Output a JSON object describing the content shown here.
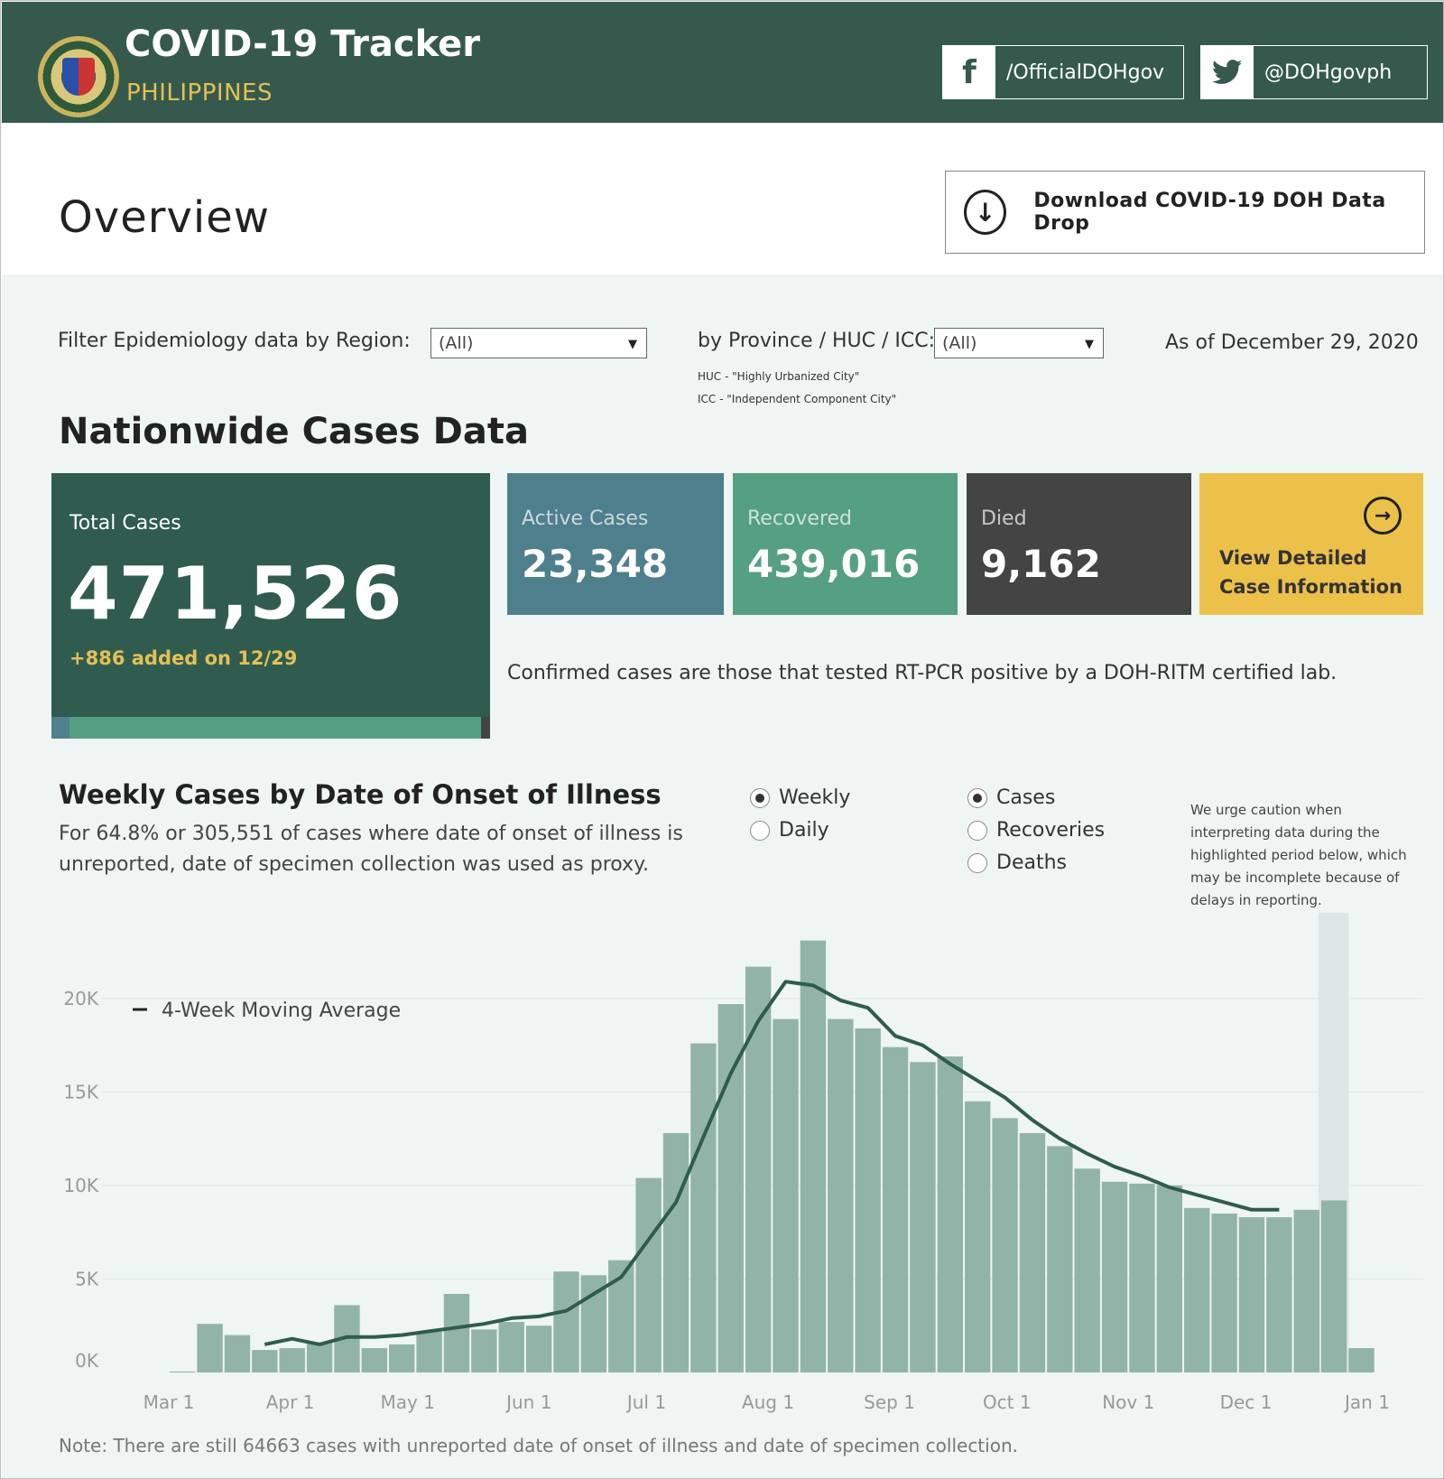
{
  "header": {
    "title": "COVID-19 Tracker",
    "subtitle": "PHILIPPINES",
    "facebook": "/OfficialDOHgov",
    "twitter": "@DOHgovph"
  },
  "overview": {
    "title": "Overview",
    "download_label": "Download COVID-19 DOH Data Drop"
  },
  "filters": {
    "region_label": "Filter Epidemiology data by Region:",
    "region_value": "(All)",
    "province_label": "by Province / HUC / ICC:",
    "province_value": "(All)",
    "huc_note": "HUC - \"Highly Urbanized City\"",
    "icc_note": "ICC - \"Independent Component City\"",
    "as_of": "As of December 29, 2020"
  },
  "nationwide": {
    "heading": "Nationwide Cases Data",
    "total_label": "Total Cases",
    "total_value": "471,526",
    "added": "+886 added on 12/29",
    "active_label": "Active Cases",
    "active_value": "23,348",
    "recovered_label": "Recovered",
    "recovered_value": "439,016",
    "died_label": "Died",
    "died_value": "9,162",
    "view_line1": "View Detailed",
    "view_line2": "Case Information",
    "confirmed_note": "Confirmed cases are those that tested RT-PCR positive by a DOH-RITM certified lab."
  },
  "colors": {
    "header_bg": "#355a4d",
    "total_bg": "#2f5c4f",
    "active_bg": "#4e7f8c",
    "recovered_bg": "#54a081",
    "died_bg": "#444444",
    "view_bg": "#ecc14a",
    "bar": "#92b4a8",
    "line": "#2f5c4f"
  },
  "weekly": {
    "title": "Weekly Cases by Date of Onset of Illness",
    "subtitle": "For 64.8% or 305,551 of cases where date of onset of illness is unreported, date of specimen collection was used as proxy.",
    "period_options": [
      "Weekly",
      "Daily"
    ],
    "period_selected": "Weekly",
    "metric_options": [
      "Cases",
      "Recoveries",
      "Deaths"
    ],
    "metric_selected": "Cases",
    "caution": "We urge caution when interpreting data during the highlighted period below, which may be incomplete because of delays in reporting.",
    "footnote": "Note: There are still 64663 cases with unreported date of onset of illness and date of specimen collection."
  },
  "chart_data": {
    "type": "bar",
    "title": "Weekly Cases by Date of Onset of Illness",
    "x_tick_labels": [
      "Mar 1",
      "Apr 1",
      "May 1",
      "Jun 1",
      "Jul 1",
      "Aug 1",
      "Sep 1",
      "Oct 1",
      "Nov 1",
      "Dec 1",
      "Jan 1"
    ],
    "y_tick_labels": [
      "0K",
      "5K",
      "10K",
      "15K",
      "20K"
    ],
    "ylim": [
      0,
      24000
    ],
    "grid": true,
    "legend": "top-left",
    "week_starts": [
      "2020-03-01",
      "2020-03-08",
      "2020-03-15",
      "2020-03-22",
      "2020-03-29",
      "2020-04-05",
      "2020-04-12",
      "2020-04-19",
      "2020-04-26",
      "2020-05-03",
      "2020-05-10",
      "2020-05-17",
      "2020-05-24",
      "2020-05-31",
      "2020-06-07",
      "2020-06-14",
      "2020-06-21",
      "2020-06-28",
      "2020-07-05",
      "2020-07-12",
      "2020-07-19",
      "2020-07-26",
      "2020-08-02",
      "2020-08-09",
      "2020-08-16",
      "2020-08-23",
      "2020-08-30",
      "2020-09-06",
      "2020-09-13",
      "2020-09-20",
      "2020-09-27",
      "2020-10-04",
      "2020-10-11",
      "2020-10-18",
      "2020-10-25",
      "2020-11-01",
      "2020-11-08",
      "2020-11-15",
      "2020-11-22",
      "2020-11-29",
      "2020-12-06",
      "2020-12-13",
      "2020-12-20",
      "2020-12-27"
    ],
    "series": [
      {
        "type": "bar",
        "values": [
          50,
          2600,
          2000,
          1200,
          1300,
          1600,
          3600,
          1300,
          1500,
          2200,
          4200,
          2300,
          2700,
          2500,
          5400,
          5200,
          6000,
          10400,
          12800,
          17600,
          19700,
          21700,
          18900,
          23100,
          18900,
          18400,
          17400,
          16600,
          16900,
          14500,
          13600,
          12800,
          12100,
          10900,
          10200,
          10100,
          10000,
          8800,
          8500,
          8300,
          8300,
          8700,
          9200,
          1300
        ]
      },
      {
        "name": "4-Week Moving Average",
        "type": "line",
        "values": [
          null,
          null,
          null,
          1500,
          1800,
          1500,
          1900,
          1900,
          2000,
          2200,
          2400,
          2600,
          2900,
          3000,
          3300,
          4200,
          5100,
          7100,
          9100,
          12600,
          16000,
          18800,
          20900,
          20700,
          19900,
          19500,
          18000,
          17500,
          16500,
          15600,
          14700,
          13500,
          12500,
          11700,
          11000,
          10500,
          9900,
          9500,
          9100,
          8700,
          8700,
          null,
          null,
          null
        ]
      }
    ],
    "highlight_week": "2020-12-20",
    "annotation": "We urge caution when interpreting data during the highlighted period below, which may be incomplete because of delays in reporting."
  }
}
